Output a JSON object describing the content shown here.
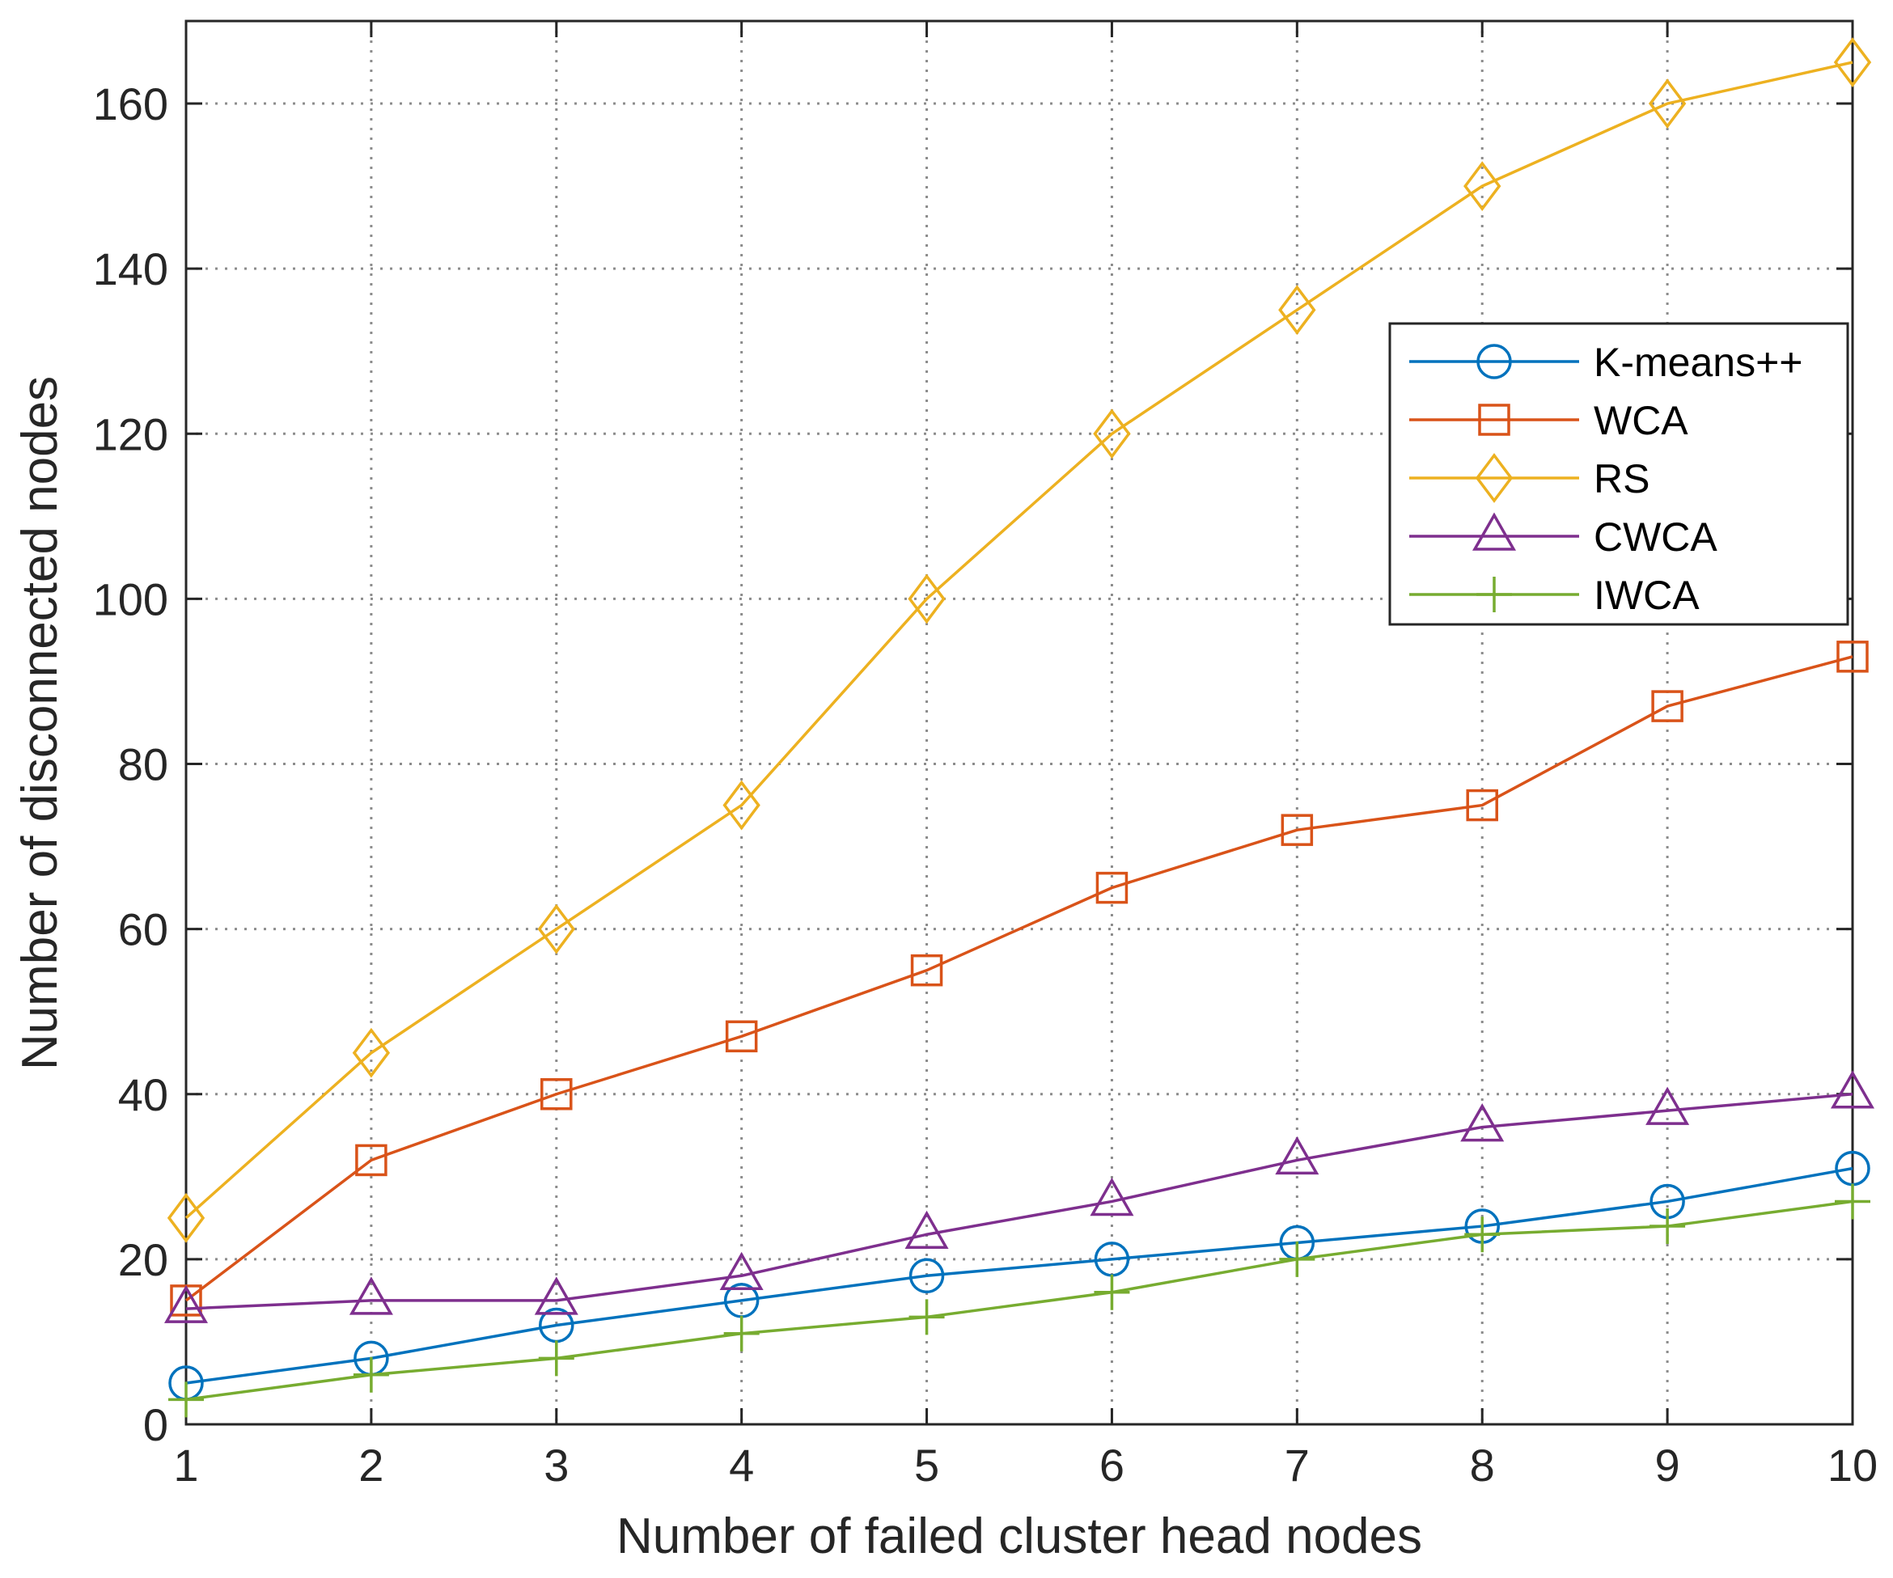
{
  "chart_data": {
    "type": "line",
    "title": "",
    "xlabel": "Number of failed cluster head nodes",
    "ylabel": "Number of disconnected nodes",
    "xlim": [
      1,
      10
    ],
    "ylim": [
      0,
      170
    ],
    "x": [
      1,
      2,
      3,
      4,
      5,
      6,
      7,
      8,
      9,
      10
    ],
    "xticks": [
      "1",
      "2",
      "3",
      "4",
      "5",
      "6",
      "7",
      "8",
      "9",
      "10"
    ],
    "yticks": [
      "0",
      "20",
      "40",
      "60",
      "80",
      "100",
      "120",
      "140",
      "160"
    ],
    "ytick_values": [
      0,
      20,
      40,
      60,
      80,
      100,
      120,
      140,
      160
    ],
    "grid": true,
    "legend_position": "right",
    "series": [
      {
        "name": "K-means++",
        "color": "#0072BD",
        "marker": "circle",
        "values": [
          5,
          8,
          12,
          15,
          18,
          20,
          22,
          24,
          27,
          31
        ]
      },
      {
        "name": "WCA",
        "color": "#D95319",
        "marker": "square",
        "values": [
          15,
          32,
          40,
          47,
          55,
          65,
          72,
          75,
          87,
          93
        ]
      },
      {
        "name": "RS",
        "color": "#EDB120",
        "marker": "diamond",
        "values": [
          25,
          45,
          60,
          75,
          100,
          120,
          135,
          150,
          160,
          165
        ]
      },
      {
        "name": "CWCA",
        "color": "#7E2F8E",
        "marker": "triangle",
        "values": [
          14,
          15,
          15,
          18,
          23,
          27,
          32,
          36,
          38,
          40
        ]
      },
      {
        "name": "IWCA",
        "color": "#77AC30",
        "marker": "plus",
        "values": [
          3,
          6,
          8,
          11,
          13,
          16,
          20,
          23,
          24,
          27
        ]
      }
    ]
  }
}
